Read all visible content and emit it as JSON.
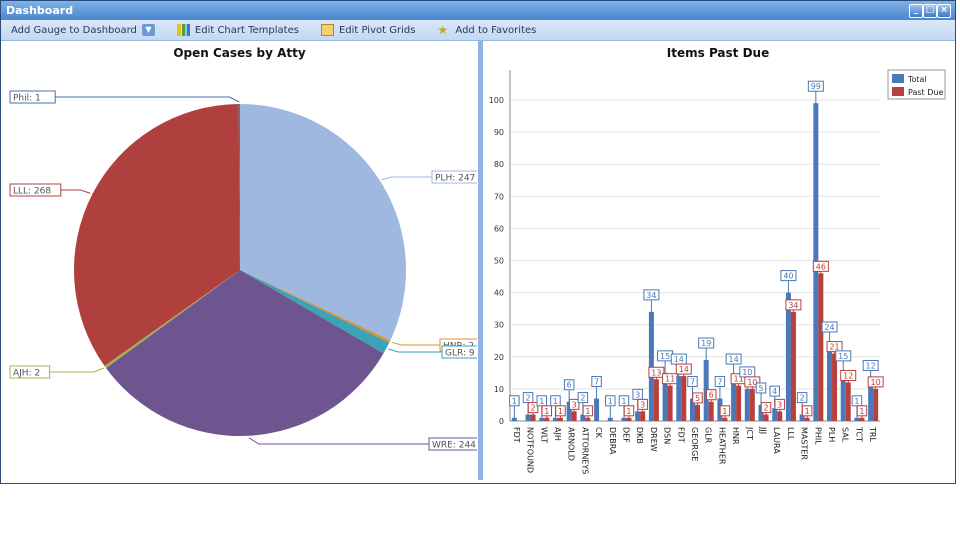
{
  "window": {
    "title": "Dashboard"
  },
  "toolbar": {
    "add_gauge": "Add Gauge to Dashboard",
    "edit_templates": "Edit Chart Templates",
    "edit_pivot": "Edit Pivot Grids",
    "add_favorites": "Add to Favorites"
  },
  "chart_data": [
    {
      "type": "pie",
      "title": "Open Cases by Atty",
      "slices": [
        {
          "label": "PLH",
          "value": 247,
          "color": "#9fb8e0"
        },
        {
          "label": "HNR",
          "value": 2,
          "color": "#e0902a"
        },
        {
          "label": "GLR",
          "value": 9,
          "color": "#3aa3b8"
        },
        {
          "label": "WRE",
          "value": 244,
          "color": "#6e5590"
        },
        {
          "label": "AJH",
          "value": 2,
          "color": "#a4b050"
        },
        {
          "label": "LLL",
          "value": 268,
          "color": "#b0403e"
        },
        {
          "label": "Phil",
          "value": 1,
          "color": "#4a6fa8"
        }
      ]
    },
    {
      "type": "bar",
      "title": "Items Past Due",
      "ylim": [
        0,
        100
      ],
      "yticks": [
        0,
        10,
        20,
        30,
        40,
        50,
        60,
        70,
        80,
        90,
        100
      ],
      "grid": true,
      "legend": "top-right",
      "categories": [
        "FDT",
        "NOTFOUND",
        "WLT",
        "AJH",
        "ARNOLD",
        "ATTORNEYS",
        "CK",
        "DEBRA",
        "DEF",
        "DKB",
        "DREW",
        "DSN",
        "FDT",
        "GEORGE",
        "GLR",
        "HEATHER",
        "HNR",
        "JCT",
        "JJJ",
        "LAURA",
        "LLL",
        "MASTER",
        "PHIL",
        "PLH",
        "SAL",
        "TCT",
        "TRL"
      ],
      "series": [
        {
          "name": "Total",
          "color": "#4a78b8",
          "values": [
            1,
            2,
            1,
            1,
            6,
            2,
            7,
            1,
            1,
            3,
            34,
            15,
            14,
            7,
            19,
            7,
            14,
            10,
            5,
            4,
            40,
            2,
            99,
            24,
            15,
            1,
            12
          ]
        },
        {
          "name": "Past Due",
          "color": "#b8403c",
          "values": [
            0,
            2,
            1,
            1,
            3,
            1,
            0,
            0,
            1,
            3,
            13,
            11,
            14,
            5,
            6,
            1,
            11,
            10,
            2,
            3,
            34,
            1,
            46,
            21,
            12,
            1,
            10
          ]
        }
      ]
    }
  ]
}
